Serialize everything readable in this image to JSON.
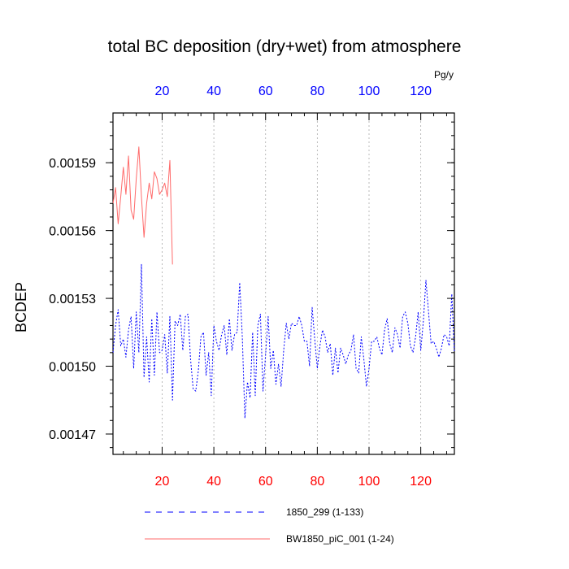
{
  "title": "total BC deposition (dry+wet) from atmosphere",
  "units": "Pg/y",
  "colors": {
    "top_ticks": "#0000ff",
    "bottom_ticks": "#ff0000",
    "grid": "#aaaaaa"
  },
  "legend": [
    {
      "label": "1850_299 (1-133)",
      "color": "#0000ff",
      "style": "dashed"
    },
    {
      "label": "BW1850_piC_001 (1-24)",
      "color": "#ff6a6a",
      "style": "solid"
    }
  ],
  "chart_data": {
    "type": "line",
    "title": "total BC deposition (dry+wet) from atmosphere",
    "ylabel": "BCDEP",
    "xlabel": "",
    "xlim": [
      1,
      133
    ],
    "ylim": [
      0.001461,
      0.001612
    ],
    "x_ticks": [
      20,
      40,
      60,
      80,
      100,
      120
    ],
    "y_ticks": [
      0.00147,
      0.0015,
      0.00153,
      0.00156,
      0.00159
    ],
    "y_tick_labels": [
      "0.00147",
      "0.00150",
      "0.00153",
      "0.00156",
      "0.00159"
    ],
    "grid": "vertical dashed at x ticks",
    "legend_position": "bottom",
    "series": [
      {
        "name": "1850_299 (1-133)",
        "color": "#0000ff",
        "style": "dashed",
        "x_start": 1,
        "values": [
          0.001506,
          0.001518,
          0.001525,
          0.001509,
          0.001512,
          0.001504,
          0.001516,
          0.001522,
          0.001499,
          0.001524,
          0.001506,
          0.001545,
          0.001495,
          0.001513,
          0.001493,
          0.001521,
          0.001496,
          0.001524,
          0.001506,
          0.001507,
          0.001514,
          0.001497,
          0.001522,
          0.001485,
          0.00152,
          0.001518,
          0.001523,
          0.001507,
          0.001522,
          0.001523,
          0.001503,
          0.00149,
          0.001489,
          0.001498,
          0.001513,
          0.001515,
          0.001496,
          0.001506,
          0.001487,
          0.001518,
          0.001511,
          0.001507,
          0.001514,
          0.001518,
          0.001505,
          0.001521,
          0.001507,
          0.001514,
          0.001515,
          0.001537,
          0.001513,
          0.001477,
          0.001493,
          0.001486,
          0.001515,
          0.001487,
          0.001518,
          0.001523,
          0.001489,
          0.001505,
          0.001522,
          0.001499,
          0.001507,
          0.001492,
          0.001501,
          0.001491,
          0.001507,
          0.001519,
          0.001512,
          0.001519,
          0.001518,
          0.001518,
          0.001522,
          0.001518,
          0.001511,
          0.001511,
          0.0015,
          0.001526,
          0.001512,
          0.001499,
          0.001509,
          0.001516,
          0.001513,
          0.001506,
          0.00151,
          0.001496,
          0.001508,
          0.001497,
          0.001508,
          0.001505,
          0.001501,
          0.001505,
          0.001507,
          0.001514,
          0.001499,
          0.001497,
          0.001513,
          0.001503,
          0.001491,
          0.001499,
          0.001511,
          0.001511,
          0.001513,
          0.001508,
          0.001505,
          0.001516,
          0.001521,
          0.00151,
          0.001506,
          0.001517,
          0.001514,
          0.001508,
          0.001522,
          0.001524,
          0.001519,
          0.001509,
          0.001506,
          0.001513,
          0.001524,
          0.001507,
          0.00152,
          0.001538,
          0.001524,
          0.00151,
          0.001511,
          0.001508,
          0.001504,
          0.001508,
          0.001514,
          0.001513,
          0.001509,
          0.001532,
          0.001506
        ]
      },
      {
        "name": "BW1850_piC_001 (1-24)",
        "color": "#ff6a6a",
        "style": "solid",
        "x_start": 1,
        "values": [
          0.001572,
          0.001579,
          0.001563,
          0.001575,
          0.001588,
          0.001576,
          0.001593,
          0.001569,
          0.001565,
          0.001583,
          0.001597,
          0.001575,
          0.001557,
          0.001572,
          0.001581,
          0.001574,
          0.001586,
          0.001583,
          0.001576,
          0.001578,
          0.001581,
          0.001575,
          0.001591,
          0.001545
        ]
      }
    ]
  }
}
